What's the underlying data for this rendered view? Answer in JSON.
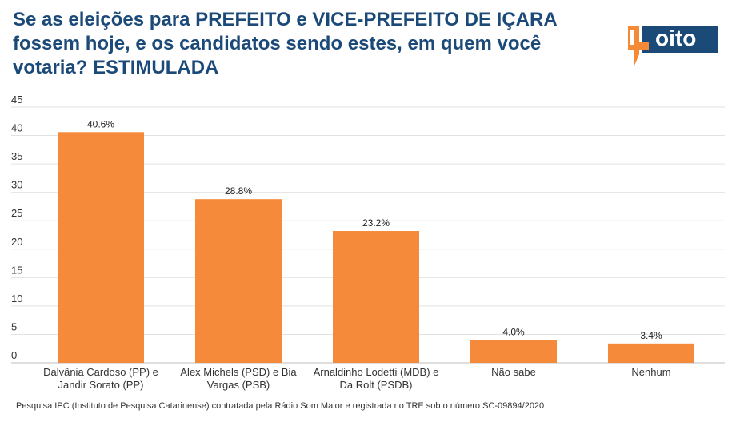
{
  "title": "Se as eleições para PREFEITO e VICE-PREFEITO DE IÇARA fossem hoje, e os candidatos sendo estes, em quem você votaria? ESTIMULADA",
  "logo": {
    "text": "oito",
    "digit": "4",
    "colors": {
      "orange": "#f58a36",
      "navy": "#1c4a78"
    }
  },
  "colors": {
    "bar": "#f58a3a",
    "title": "#1c4a78",
    "grid": "#e2e2e2"
  },
  "footer": "Pesquisa IPC (Instituto de Pesquisa Catarinense) contratada pela Rádio Som Maior e registrada no TRE sob o número SC-09894/2020",
  "chart_data": {
    "type": "bar",
    "categories": [
      [
        "Dalvânia Cardoso (PP) e",
        "Jandir Sorato (PP)"
      ],
      [
        "Alex Michels (PSD) e Bia",
        "Vargas (PSB)"
      ],
      [
        "Arnaldinho Lodetti (MDB) e",
        "Da Rolt (PSDB)"
      ],
      [
        "Não sabe"
      ],
      [
        "Nenhum"
      ]
    ],
    "values": [
      40.6,
      28.8,
      23.2,
      4.0,
      3.4
    ],
    "labels": [
      "40.6%",
      "28.8%",
      "23.2%",
      "4.0%",
      "3.4%"
    ],
    "yticks": [
      0,
      5,
      10,
      15,
      20,
      25,
      30,
      35,
      40,
      45
    ],
    "ylim": [
      0,
      45
    ],
    "grid": true
  }
}
